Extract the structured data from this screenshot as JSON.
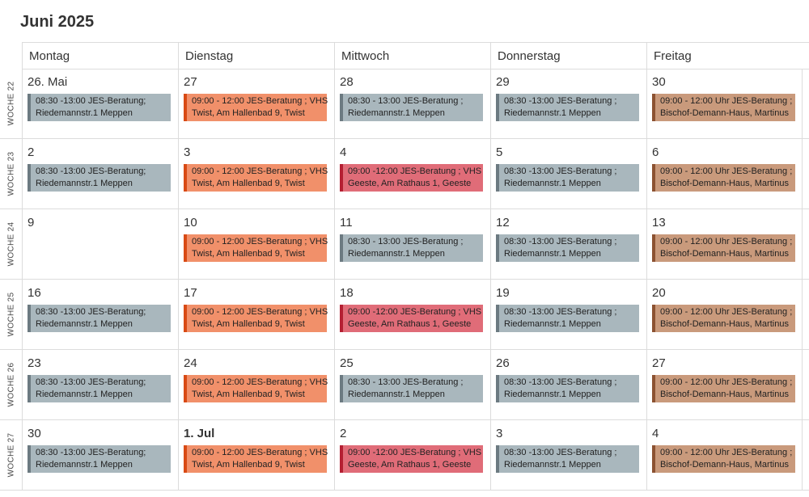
{
  "calendar": {
    "title": "Juni 2025",
    "weekdays": [
      "Montag",
      "Dienstag",
      "Mittwoch",
      "Donnerstag",
      "Freitag"
    ],
    "weeks": [
      {
        "label": "WOCHE 22",
        "days": [
          {
            "date": "26. Mai",
            "color": "gray",
            "event": {
              "line1": "08:30 -13:00 JES-Beratung;",
              "line2": "Riedemannstr.1 Meppen"
            }
          },
          {
            "date": "27",
            "color": "orange",
            "event": {
              "line1": "09:00 - 12:00 JES-Beratung ; VHS",
              "line2": "Twist, Am Hallenbad 9, Twist"
            }
          },
          {
            "date": "28",
            "color": "gray",
            "event": {
              "line1": "08:30 - 13:00 JES-Beratung ;",
              "line2": "Riedemannstr.1 Meppen"
            }
          },
          {
            "date": "29",
            "color": "gray",
            "event": {
              "line1": "08:30 -13:00 JES-Beratung ;",
              "line2": "Riedemannstr.1 Meppen"
            }
          },
          {
            "date": "30",
            "color": "brown",
            "event": {
              "line1": "09:00 - 12:00 Uhr JES-Beratung ;",
              "line2": "Bischof-Demann-Haus, Martinus"
            }
          }
        ]
      },
      {
        "label": "WOCHE 23",
        "days": [
          {
            "date": "2",
            "color": "gray",
            "event": {
              "line1": "08:30 -13:00 JES-Beratung;",
              "line2": "Riedemannstr.1 Meppen"
            }
          },
          {
            "date": "3",
            "color": "orange",
            "event": {
              "line1": "09:00 - 12:00 JES-Beratung ; VHS",
              "line2": "Twist, Am Hallenbad 9, Twist"
            }
          },
          {
            "date": "4",
            "color": "red",
            "event": {
              "line1": "09:00 -12:00 JES-Beratung ; VHS",
              "line2": "Geeste, Am Rathaus 1, Geeste"
            }
          },
          {
            "date": "5",
            "color": "gray",
            "event": {
              "line1": "08:30 -13:00 JES-Beratung ;",
              "line2": "Riedemannstr.1 Meppen"
            }
          },
          {
            "date": "6",
            "color": "brown",
            "event": {
              "line1": "09:00 - 12:00 Uhr JES-Beratung ;",
              "line2": "Bischof-Demann-Haus, Martinus"
            }
          }
        ]
      },
      {
        "label": "WOCHE 24",
        "days": [
          {
            "date": "9",
            "color": "",
            "event": {
              "line1": "",
              "line2": ""
            }
          },
          {
            "date": "10",
            "color": "orange",
            "event": {
              "line1": "09:00 - 12:00 JES-Beratung ; VHS",
              "line2": "Twist, Am Hallenbad 9, Twist"
            }
          },
          {
            "date": "11",
            "color": "gray",
            "event": {
              "line1": "08:30 - 13:00 JES-Beratung ;",
              "line2": "Riedemannstr.1 Meppen"
            }
          },
          {
            "date": "12",
            "color": "gray",
            "event": {
              "line1": "08:30 -13:00 JES-Beratung ;",
              "line2": "Riedemannstr.1 Meppen"
            }
          },
          {
            "date": "13",
            "color": "brown",
            "event": {
              "line1": "09:00 - 12:00 Uhr JES-Beratung ;",
              "line2": "Bischof-Demann-Haus, Martinus"
            }
          }
        ]
      },
      {
        "label": "WOCHE 25",
        "days": [
          {
            "date": "16",
            "color": "gray",
            "event": {
              "line1": "08:30 -13:00 JES-Beratung;",
              "line2": "Riedemannstr.1 Meppen"
            }
          },
          {
            "date": "17",
            "color": "orange",
            "event": {
              "line1": "09:00 - 12:00 JES-Beratung ; VHS",
              "line2": "Twist, Am Hallenbad 9, Twist"
            }
          },
          {
            "date": "18",
            "color": "red",
            "event": {
              "line1": "09:00 -12:00 JES-Beratung ; VHS",
              "line2": "Geeste, Am Rathaus 1, Geeste"
            }
          },
          {
            "date": "19",
            "color": "gray",
            "event": {
              "line1": "08:30 -13:00 JES-Beratung ;",
              "line2": "Riedemannstr.1 Meppen"
            }
          },
          {
            "date": "20",
            "color": "brown",
            "event": {
              "line1": "09:00 - 12:00 Uhr JES-Beratung ;",
              "line2": "Bischof-Demann-Haus, Martinus"
            }
          }
        ]
      },
      {
        "label": "WOCHE 26",
        "days": [
          {
            "date": "23",
            "color": "gray",
            "event": {
              "line1": "08:30 -13:00 JES-Beratung;",
              "line2": "Riedemannstr.1 Meppen"
            }
          },
          {
            "date": "24",
            "color": "orange",
            "event": {
              "line1": "09:00 - 12:00 JES-Beratung ; VHS",
              "line2": "Twist, Am Hallenbad 9, Twist"
            }
          },
          {
            "date": "25",
            "color": "gray",
            "event": {
              "line1": "08:30 - 13:00 JES-Beratung ;",
              "line2": "Riedemannstr.1 Meppen"
            }
          },
          {
            "date": "26",
            "color": "gray",
            "event": {
              "line1": "08:30 -13:00 JES-Beratung ;",
              "line2": "Riedemannstr.1 Meppen"
            }
          },
          {
            "date": "27",
            "color": "brown",
            "event": {
              "line1": "09:00 - 12:00 Uhr JES-Beratung ;",
              "line2": "Bischof-Demann-Haus, Martinus"
            }
          }
        ]
      },
      {
        "label": "WOCHE 27",
        "days": [
          {
            "date": "30",
            "color": "gray",
            "event": {
              "line1": "08:30 -13:00 JES-Beratung;",
              "line2": "Riedemannstr.1 Meppen"
            }
          },
          {
            "date": "1. Jul",
            "bold": true,
            "color": "orange",
            "event": {
              "line1": "09:00 - 12:00 JES-Beratung ; VHS",
              "line2": "Twist, Am Hallenbad 9, Twist"
            }
          },
          {
            "date": "2",
            "color": "red",
            "event": {
              "line1": "09:00 -12:00 JES-Beratung ; VHS",
              "line2": "Geeste, Am Rathaus 1, Geeste"
            }
          },
          {
            "date": "3",
            "color": "gray",
            "event": {
              "line1": "08:30 -13:00 JES-Beratung ;",
              "line2": "Riedemannstr.1 Meppen"
            }
          },
          {
            "date": "4",
            "color": "brown",
            "event": {
              "line1": "09:00 - 12:00 Uhr JES-Beratung ;",
              "line2": "Bischof-Demann-Haus, Martinus"
            }
          }
        ]
      }
    ]
  }
}
